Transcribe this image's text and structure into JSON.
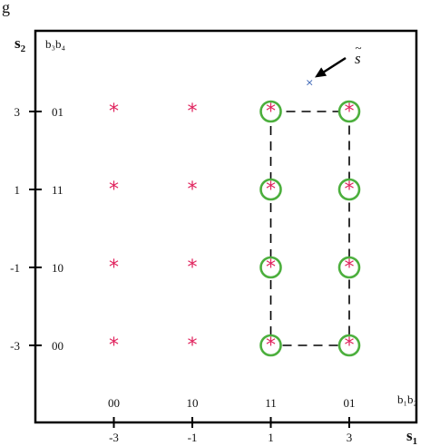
{
  "figure_letter": "g",
  "axes": {
    "y_title": "s",
    "y_title_sub": "2",
    "x_title": "s",
    "x_title_sub": "1",
    "y_bits_header": "b₃b₄",
    "x_bits_header": "b₁b₂"
  },
  "x_ticks": [
    {
      "value": -3,
      "label": "-3",
      "bits": "00"
    },
    {
      "value": -1,
      "label": "-1",
      "bits": "10"
    },
    {
      "value": 1,
      "label": "1",
      "bits": "11"
    },
    {
      "value": 3,
      "label": "3",
      "bits": "01"
    }
  ],
  "y_ticks": [
    {
      "value": 3,
      "label": "3",
      "bits": "01"
    },
    {
      "value": 1,
      "label": "1",
      "bits": "11"
    },
    {
      "value": -1,
      "label": "-1",
      "bits": "10"
    },
    {
      "value": -3,
      "label": "-3",
      "bits": "00"
    }
  ],
  "constellation": {
    "marker": "*",
    "marker_color": "#e0245e",
    "points": [
      {
        "s1": -3,
        "s2": 3
      },
      {
        "s1": -1,
        "s2": 3
      },
      {
        "s1": 1,
        "s2": 3
      },
      {
        "s1": 3,
        "s2": 3
      },
      {
        "s1": -3,
        "s2": 1
      },
      {
        "s1": -1,
        "s2": 1
      },
      {
        "s1": 1,
        "s2": 1
      },
      {
        "s1": 3,
        "s2": 1
      },
      {
        "s1": -3,
        "s2": -1
      },
      {
        "s1": -1,
        "s2": -1
      },
      {
        "s1": 1,
        "s2": -1
      },
      {
        "s1": 3,
        "s2": -1
      },
      {
        "s1": -3,
        "s2": -3
      },
      {
        "s1": -1,
        "s2": -3
      },
      {
        "s1": 1,
        "s2": -3
      },
      {
        "s1": 3,
        "s2": -3
      }
    ]
  },
  "highlight": {
    "ring_color": "#4caf3d",
    "circled": [
      {
        "s1": 1,
        "s2": 3
      },
      {
        "s1": 3,
        "s2": 3
      },
      {
        "s1": 1,
        "s2": 1
      },
      {
        "s1": 3,
        "s2": 1
      },
      {
        "s1": 1,
        "s2": -1
      },
      {
        "s1": 3,
        "s2": -1
      },
      {
        "s1": 1,
        "s2": -3
      },
      {
        "s1": 3,
        "s2": -3
      }
    ],
    "region": {
      "s1_min": 1,
      "s1_max": 3,
      "s2_min": -3,
      "s2_max": 3
    }
  },
  "received": {
    "label": "s",
    "label_accent": "~",
    "marker": "×",
    "marker_color": "#3a64b5",
    "s1": 2,
    "s2": 3.75
  }
}
